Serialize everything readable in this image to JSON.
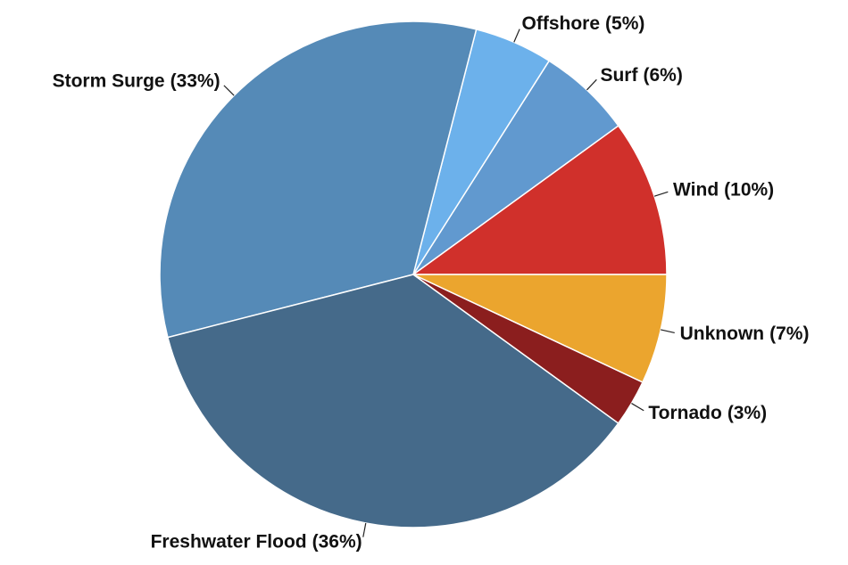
{
  "chart_data": {
    "type": "pie",
    "categories": [
      "Wind",
      "Surf",
      "Offshore",
      "Storm Surge",
      "Freshwater Flood",
      "Tornado",
      "Unknown"
    ],
    "values": [
      10,
      6,
      5,
      33,
      36,
      3,
      7
    ],
    "value_labels": [
      "(10%)",
      "(6%)",
      "(5%)",
      "(33%)",
      "(36%)",
      "(3%)",
      "(7%)"
    ],
    "colors": [
      "#d0302b",
      "#6199cf",
      "#6cb1eb",
      "#558ab7",
      "#456a8a",
      "#8b1e1e",
      "#eba52e"
    ]
  }
}
